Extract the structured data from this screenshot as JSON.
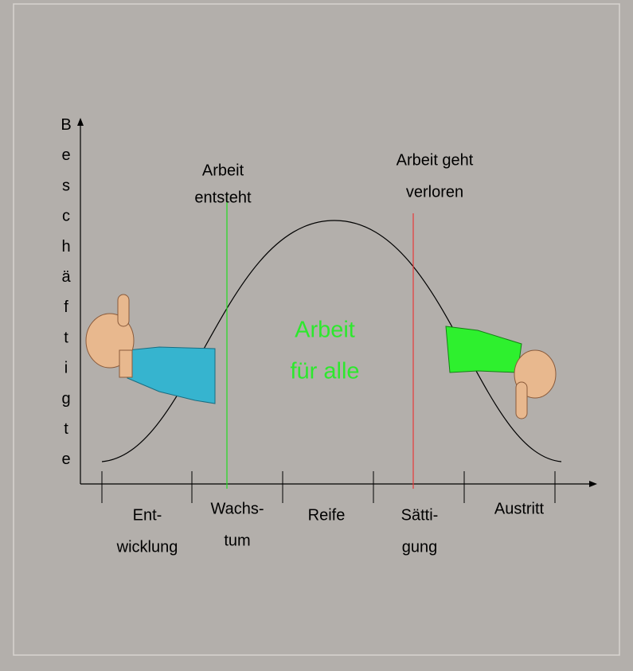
{
  "y_axis_label": "Beschäftigte",
  "annotations": {
    "left": [
      "Arbeit",
      "entsteht"
    ],
    "right": [
      "Arbeit geht",
      "verloren"
    ],
    "center": [
      "Arbeit",
      "für alle"
    ]
  },
  "phases": [
    [
      "Ent-",
      "wicklung"
    ],
    [
      "Wachs-",
      "tum"
    ],
    [
      "Reife"
    ],
    [
      "Sätti-",
      "gung"
    ],
    [
      "Austritt"
    ]
  ]
}
